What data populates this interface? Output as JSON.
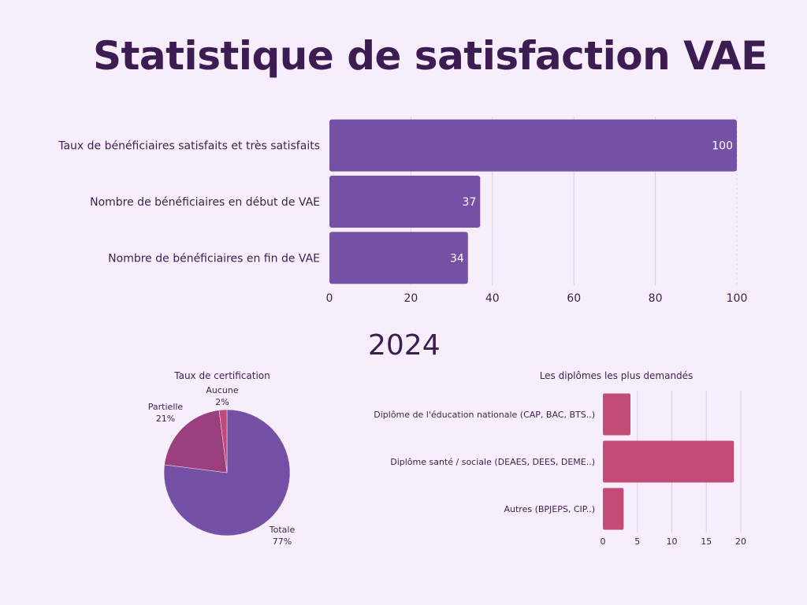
{
  "title": "Statistique de satisfaction VAE",
  "year": "2024",
  "colors": {
    "background": "#f7eefb",
    "purple": "#7551a5",
    "magenta": "#9b3f7e",
    "pink": "#c24a76",
    "text": "#3d1f4e",
    "grid": "#d9cde2"
  },
  "chart_data": [
    {
      "type": "bar",
      "orientation": "horizontal",
      "title": "",
      "categories": [
        "Taux de bénéficiaires satisfaits et très satisfaits",
        "Nombre de bénéficiaires en début de VAE",
        "Nombre de bénéficiaires en fin de VAE"
      ],
      "values": [
        100,
        37,
        34
      ],
      "data_labels": [
        "100",
        "37",
        "34"
      ],
      "xlim": [
        0,
        100
      ],
      "xticks": [
        0,
        20,
        40,
        60,
        80,
        100
      ],
      "grid": true
    },
    {
      "type": "pie",
      "title": "Taux de certification",
      "slices": [
        {
          "label": "Totale",
          "value": 77,
          "pct_label": "77%"
        },
        {
          "label": "Partielle",
          "value": 21,
          "pct_label": "21%"
        },
        {
          "label": "Aucune",
          "value": 2,
          "pct_label": "2%"
        }
      ]
    },
    {
      "type": "bar",
      "orientation": "horizontal",
      "title": "Les diplômes les plus demandés",
      "categories": [
        "Diplôme de l'éducation nationale (CAP, BAC, BTS..)",
        "Diplôme santé / sociale (DEAES, DEES, DEME..)",
        "Autres (BPJEPS, CIP..)"
      ],
      "values": [
        4,
        19,
        3
      ],
      "xlim": [
        0,
        20
      ],
      "xticks": [
        0,
        5,
        10,
        15,
        20
      ],
      "grid": true
    }
  ]
}
